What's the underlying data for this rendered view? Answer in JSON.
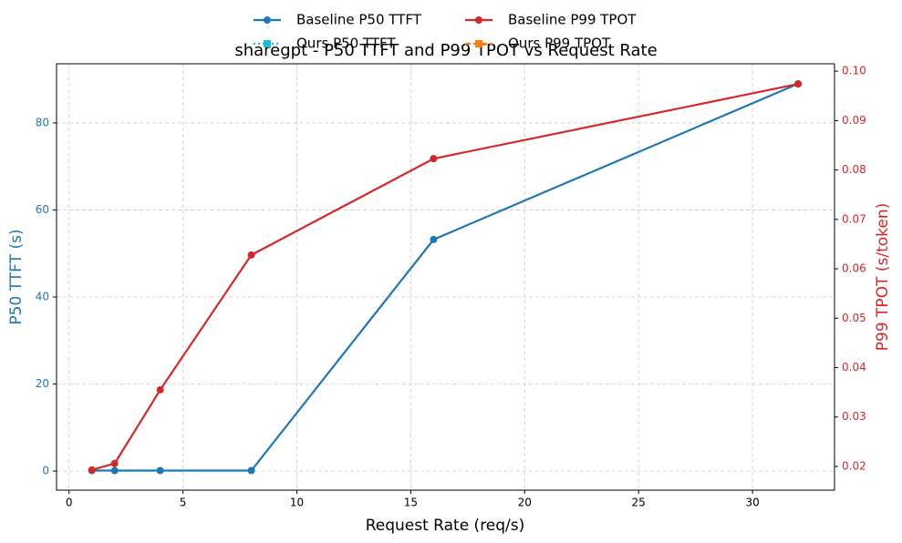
{
  "chart_data": {
    "type": "line",
    "title": "sharegpt - P50 TTFT and P99 TPOT vs Request Rate",
    "x_label": "Request Rate (req/s)",
    "y_label": "P50 TTFT (s)",
    "y2_label": "P99 TPOT (s/token)",
    "x": [
      1,
      2,
      4,
      8,
      16,
      32
    ],
    "series": [
      {
        "name": "Baseline P50 TTFT",
        "color": "#1f77b4",
        "marker": "circle",
        "dash": "solid",
        "values": [
          0.1,
          0.1,
          0.1,
          0.1,
          53.2,
          89.0
        ]
      },
      {
        "name": "Ours P50 TTFT",
        "color": "#17becf",
        "marker": "square",
        "dash": "dotted",
        "values": [
          null,
          null,
          null,
          null,
          null,
          null
        ]
      },
      {
        "name": "Baseline P99 TPOT",
        "color": "#d62728",
        "marker": "circle",
        "dash": "solid",
        "axis": "y2",
        "values": [
          0.0193,
          0.0206,
          0.0355,
          0.0628,
          0.0823,
          0.0974
        ]
      },
      {
        "name": "Ours P99 TPOT",
        "color": "#ff7f0e",
        "marker": "square",
        "dash": "dashed",
        "axis": "y2",
        "values": [
          null,
          null,
          null,
          null,
          null,
          null
        ]
      }
    ],
    "xlim": [
      -0.55,
      33.6
    ],
    "xticks": [
      0,
      5,
      10,
      15,
      20,
      25,
      30
    ],
    "ylim": [
      -4.4,
      93.6
    ],
    "yticks": [
      0,
      20,
      40,
      60,
      80
    ],
    "y2lim": [
      0.0152,
      0.1015
    ],
    "y2ticks": [
      0.02,
      0.03,
      0.04,
      0.05,
      0.06,
      0.07,
      0.08,
      0.09,
      {
        "value": 0.1,
        "label": "0.10"
      }
    ],
    "grid": true,
    "legend": "upper center"
  }
}
